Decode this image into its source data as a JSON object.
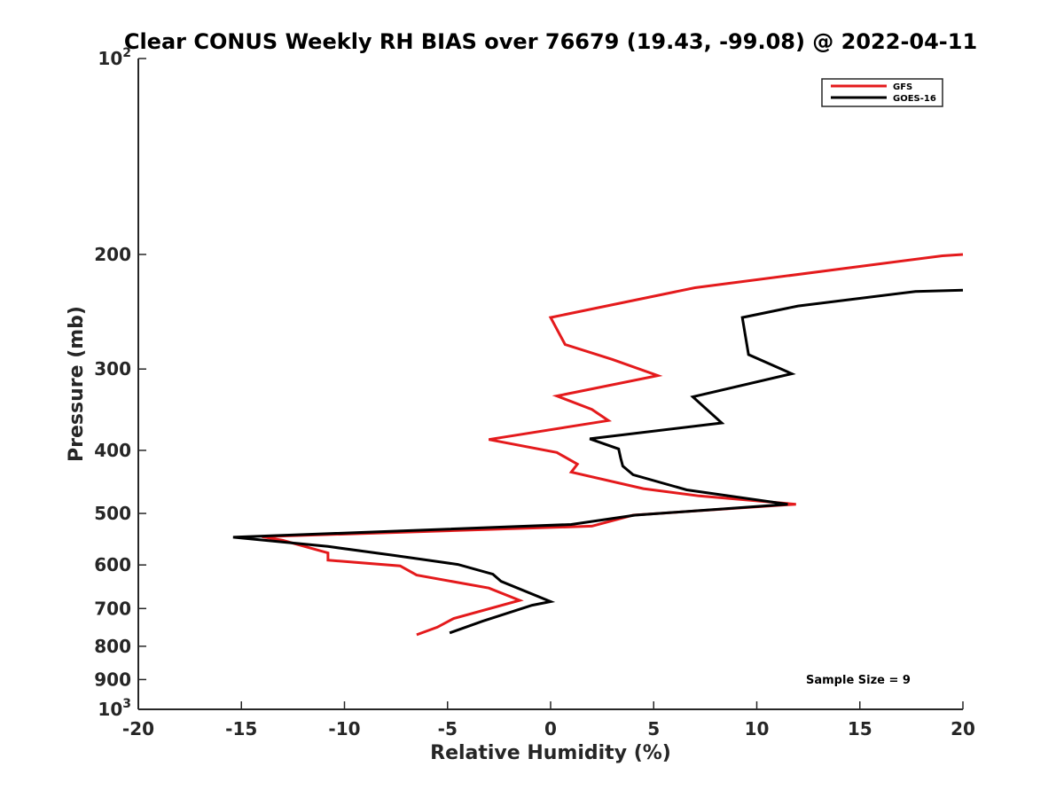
{
  "chart_data": {
    "type": "line",
    "title": "Clear CONUS Weekly RH BIAS over 76679 (19.43, -99.08) @ 2022-04-11",
    "xlabel": "Relative Humidity (%)",
    "ylabel": "Pressure (mb)",
    "xlim": [
      -20,
      20
    ],
    "ylim": [
      100,
      1000
    ],
    "y_scale": "log",
    "y_reversed": true,
    "x_ticks": [
      -20,
      -15,
      -10,
      -5,
      0,
      5,
      10,
      15,
      20
    ],
    "x_tick_labels": [
      "-20",
      "-15",
      "-10",
      "-5",
      "0",
      "5",
      "10",
      "15",
      "20"
    ],
    "y_ticks": [
      100,
      200,
      300,
      400,
      500,
      600,
      700,
      800,
      900,
      1000
    ],
    "y_tick_labels": [
      {
        "base": "10",
        "exp": "2"
      },
      {
        "base": "200",
        "exp": ""
      },
      {
        "base": "300",
        "exp": ""
      },
      {
        "base": "400",
        "exp": ""
      },
      {
        "base": "500",
        "exp": ""
      },
      {
        "base": "600",
        "exp": ""
      },
      {
        "base": "700",
        "exp": ""
      },
      {
        "base": "800",
        "exp": ""
      },
      {
        "base": "900",
        "exp": ""
      },
      {
        "base": "10",
        "exp": "3"
      }
    ],
    "grid": false,
    "legend_position": "top-right",
    "series": [
      {
        "name": "GFS",
        "color": "#e41a1c",
        "points": [
          [
            20,
            200
          ],
          [
            19,
            201
          ],
          [
            7,
            225
          ],
          [
            0,
            250
          ],
          [
            0.7,
            275
          ],
          [
            3,
            290
          ],
          [
            5.2,
            307
          ],
          [
            0.3,
            330
          ],
          [
            2,
            346
          ],
          [
            2.8,
            360
          ],
          [
            -3,
            385
          ],
          [
            0.3,
            403
          ],
          [
            1.3,
            420
          ],
          [
            1,
            432
          ],
          [
            4.5,
            458
          ],
          [
            7.2,
            470
          ],
          [
            11.9,
            484
          ],
          [
            11.5,
            485
          ],
          [
            4,
            503
          ],
          [
            2,
            523
          ],
          [
            -14,
            543
          ],
          [
            -13,
            550
          ],
          [
            -10.8,
            575
          ],
          [
            -10.8,
            590
          ],
          [
            -7.3,
            602
          ],
          [
            -6.5,
            622
          ],
          [
            -3,
            651
          ],
          [
            -1.5,
            680
          ],
          [
            -4.7,
            725
          ],
          [
            -5.5,
            748
          ],
          [
            -6.5,
            768
          ]
        ]
      },
      {
        "name": "GOES-16",
        "color": "#000000",
        "points": [
          [
            20,
            227
          ],
          [
            17.7,
            228
          ],
          [
            12,
            240
          ],
          [
            9.3,
            250
          ],
          [
            9.6,
            285
          ],
          [
            11.7,
            305
          ],
          [
            6.9,
            331
          ],
          [
            8.3,
            363
          ],
          [
            1.9,
            384
          ],
          [
            3.3,
            398
          ],
          [
            3.4,
            411
          ],
          [
            3.5,
            423
          ],
          [
            4,
            436
          ],
          [
            6.6,
            460
          ],
          [
            11.5,
            484
          ],
          [
            4.1,
            503
          ],
          [
            1,
            520
          ],
          [
            -15.4,
            544
          ],
          [
            -10.8,
            562
          ],
          [
            -7.6,
            580
          ],
          [
            -4.5,
            599
          ],
          [
            -2.8,
            620
          ],
          [
            -2.4,
            636
          ],
          [
            0,
            683
          ],
          [
            -0.9,
            692
          ],
          [
            -3.3,
            732
          ],
          [
            -4.9,
            763
          ]
        ]
      }
    ],
    "annotations": [
      "Sample Size = 9"
    ]
  }
}
